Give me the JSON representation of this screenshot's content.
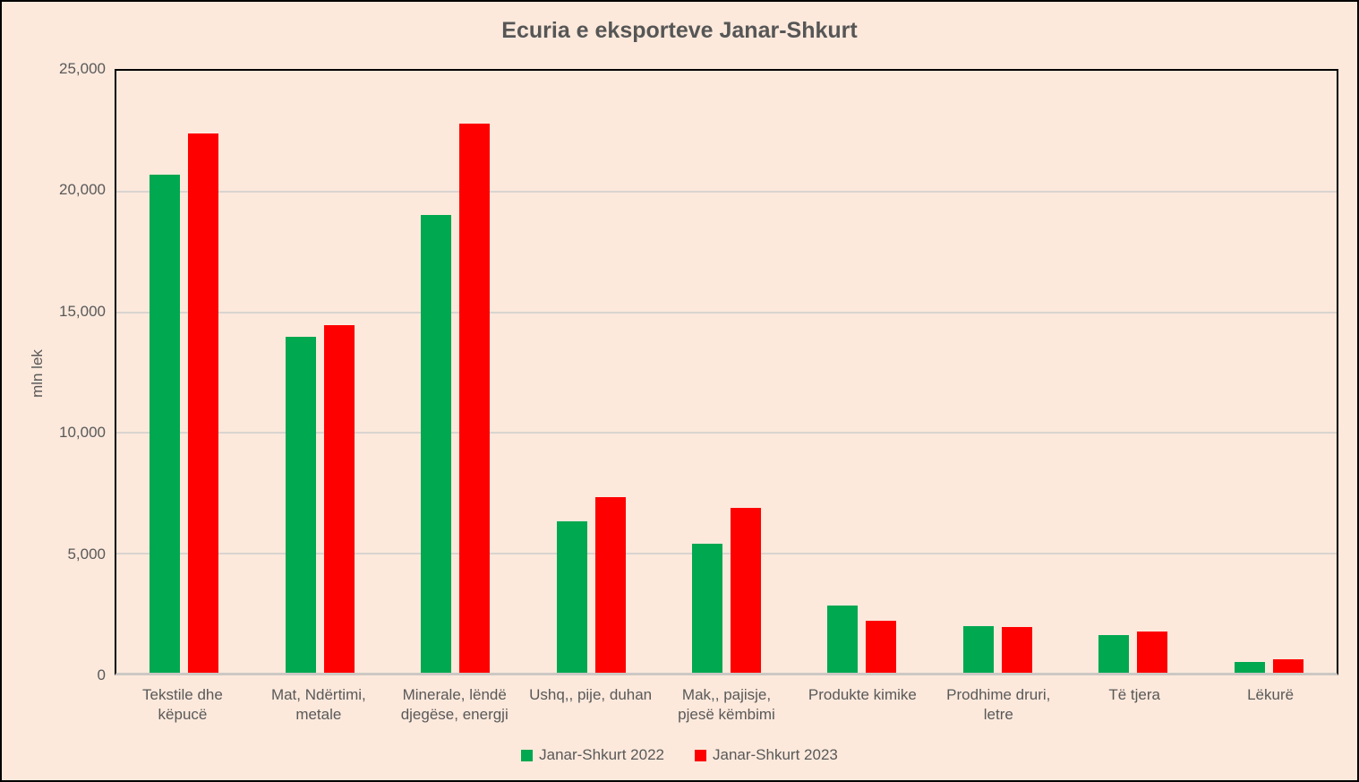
{
  "chart_data": {
    "type": "bar",
    "title": "Ecuria e eksporteve Janar-Shkurt",
    "xlabel": "",
    "ylabel": "mln lek",
    "ylim": [
      0,
      25000
    ],
    "grid": true,
    "legend_position": "bottom",
    "y_ticks": [
      0,
      5000,
      10000,
      15000,
      20000,
      25000
    ],
    "y_tick_labels": [
      "0",
      "5,000",
      "10,000",
      "15,000",
      "20,000",
      "25,000"
    ],
    "categories": [
      "Tekstile dhe këpucë",
      "Mat, Ndërtimi, metale",
      "Minerale, lëndë djegëse, energji",
      "Ushq,, pije, duhan",
      "Mak,, pajisje, pjesë këmbimi",
      "Produkte kimike",
      "Prodhime druri, letre",
      "Të tjera",
      "Lëkurë"
    ],
    "series": [
      {
        "name": "Janar-Shkurt 2022",
        "color": "#00A850",
        "values": [
          20700,
          13950,
          19000,
          6300,
          5350,
          2800,
          1950,
          1550,
          450
        ]
      },
      {
        "name": "Janar-Shkurt 2023",
        "color": "#FE0000",
        "values": [
          22400,
          14450,
          22800,
          7300,
          6850,
          2150,
          1900,
          1700,
          550
        ]
      }
    ]
  },
  "colors": {
    "background": "#FCE9DC",
    "plot_border": "#000000",
    "gridline": "#D9D4D0",
    "axis_line": "#CCC8C4",
    "text": "#595959"
  }
}
